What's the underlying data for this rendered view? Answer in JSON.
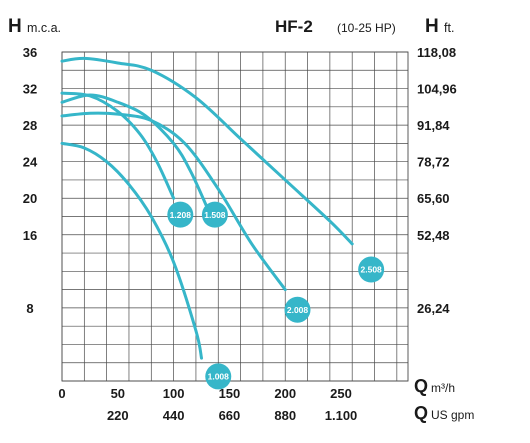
{
  "header": {
    "left_symbol": "H",
    "left_unit": "m.c.a.",
    "model": "HF-2",
    "power_range": "(10-25 HP)",
    "right_symbol": "H",
    "right_unit": "ft."
  },
  "footer": {
    "q_symbol_1": "Q",
    "q_unit_1": "m³/h",
    "q_symbol_2": "Q",
    "q_unit_2": "US gpm"
  },
  "colors": {
    "curve": "#36b6c9",
    "badge": "#36b6c9",
    "grid": "#4a4a4a",
    "text": "#1a1a1a"
  },
  "chart_data": {
    "type": "line",
    "title": "HF-2 (10-25 HP)",
    "xlabel": "Q m³/h",
    "x2label": "Q US gpm",
    "ylabel": "H m.c.a.",
    "y2label": "H ft.",
    "xlim": [
      0,
      310
    ],
    "ylim": [
      0,
      36
    ],
    "grid": true,
    "x_ticks": [
      "0",
      "50",
      "100",
      "150",
      "200",
      "250"
    ],
    "x2_ticks": [
      "220",
      "440",
      "660",
      "880",
      "1.100"
    ],
    "y_ticks": [
      "8",
      "16",
      "20",
      "24",
      "28",
      "32",
      "36"
    ],
    "y2_ticks": [
      "26,24",
      "52,48",
      "65,60",
      "78,72",
      "91,84",
      "104,96",
      "118,08"
    ],
    "series": [
      {
        "name": "1.008",
        "x": [
          0,
          20,
          40,
          60,
          80,
          100,
          120,
          125
        ],
        "y": [
          26,
          25.5,
          24,
          21.5,
          18,
          13,
          5.5,
          2.5
        ]
      },
      {
        "name": "1.208",
        "x": [
          0,
          25,
          50,
          70,
          85,
          100
        ],
        "y": [
          31.5,
          31.2,
          29.5,
          27,
          24,
          20
        ]
      },
      {
        "name": "1.508",
        "x": [
          0,
          25,
          50,
          75,
          100,
          115,
          130
        ],
        "y": [
          30.5,
          31.3,
          30.5,
          29,
          26,
          23,
          19
        ]
      },
      {
        "name": "2.008",
        "x": [
          0,
          25,
          50,
          80,
          110,
          140,
          170,
          200
        ],
        "y": [
          29,
          29.3,
          29.2,
          28.5,
          26,
          21,
          15,
          10
        ]
      },
      {
        "name": "2.508",
        "x": [
          0,
          20,
          50,
          80,
          120,
          160,
          200,
          240,
          260
        ],
        "y": [
          35,
          35.3,
          34.8,
          34,
          31,
          26.5,
          22,
          17.5,
          15
        ]
      }
    ],
    "labels": [
      {
        "text": "1.008",
        "x": 140,
        "y": 0.5
      },
      {
        "text": "1.208",
        "x": 106,
        "y": 18.2
      },
      {
        "text": "1.508",
        "x": 137,
        "y": 18.2
      },
      {
        "text": "2.008",
        "x": 211,
        "y": 7.8
      },
      {
        "text": "2.508",
        "x": 277,
        "y": 12.2
      }
    ]
  }
}
